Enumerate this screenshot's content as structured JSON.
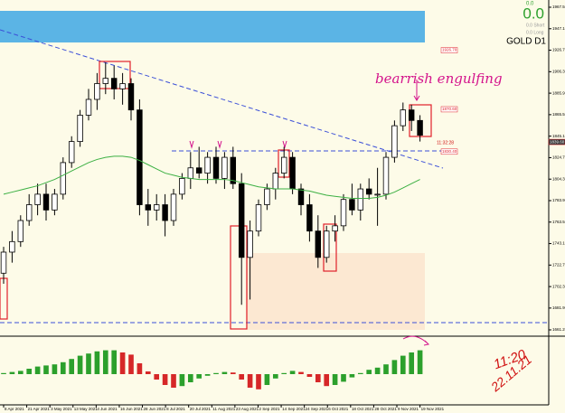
{
  "chart_data": {
    "type": "candlestick",
    "symbol": "GOLD D1",
    "info": {
      "spread": "0.0",
      "short": "0.0 Short",
      "long": "0.0 Long",
      "profit": "0.0"
    },
    "annotation": "bearrish engulfing",
    "note_time": "11:20",
    "note_date": "22.11.21",
    "timer": "11:32:28",
    "x_labels": [
      "8 Apr 2021",
      "21 Apr 2021",
      "3 May 2021",
      "13 May 2021",
      "4 Jun 2021",
      "16 Jun 2021",
      "28 Jun 2021",
      "8 Jul 2021",
      "20 Jul 2021",
      "11 Aug 2021",
      "23 Aug 2021",
      "2 Sep 2021",
      "14 Sep 2021",
      "24 Sep 2021",
      "6 Oct 2021",
      "18 Oct 2021",
      "28 Oct 2021",
      "9 Nov 2021",
      "19 Nov 2021"
    ],
    "ylim": [
      1661.2,
      1967.5
    ],
    "yticks": [
      {
        "value": 1967.5,
        "label": "1967.50"
      },
      {
        "value": 1947.1,
        "label": "1947.10"
      },
      {
        "value": 1926.7,
        "label": "1926.70"
      },
      {
        "value": 1906.3,
        "label": "1906.30"
      },
      {
        "value": 1885.9,
        "label": "1885.90"
      },
      {
        "value": 1865.5,
        "label": "1865.50"
      },
      {
        "value": 1845.1,
        "label": "1845.10"
      },
      {
        "value": 1824.7,
        "label": "1824.70"
      },
      {
        "value": 1804.3,
        "label": "1804.30"
      },
      {
        "value": 1783.9,
        "label": "1783.90"
      },
      {
        "value": 1763.5,
        "label": "1763.50"
      },
      {
        "value": 1743.1,
        "label": "1743.10"
      },
      {
        "value": 1722.7,
        "label": "1722.70"
      },
      {
        "value": 1702.3,
        "label": "1702.30"
      },
      {
        "value": 1681.9,
        "label": "1681.90"
      },
      {
        "value": 1661.2,
        "label": "1661.20"
      }
    ],
    "price_tags": [
      {
        "value": 1926.7,
        "label": "1926.70"
      },
      {
        "value": 1870.6,
        "label": "1870.60"
      },
      {
        "value": 1839.6,
        "label": "1839.60"
      },
      {
        "value": 1830.4,
        "label": "1830.40"
      }
    ],
    "up_color": "#000000",
    "down_color": "#000000",
    "ma_color": "#3cb043",
    "candles": [
      [
        1715,
        1740,
        1705,
        1735
      ],
      [
        1735,
        1755,
        1725,
        1745
      ],
      [
        1745,
        1770,
        1740,
        1765
      ],
      [
        1765,
        1790,
        1760,
        1780
      ],
      [
        1780,
        1800,
        1770,
        1790
      ],
      [
        1790,
        1800,
        1765,
        1775
      ],
      [
        1775,
        1795,
        1770,
        1790
      ],
      [
        1790,
        1825,
        1785,
        1820
      ],
      [
        1820,
        1845,
        1815,
        1840
      ],
      [
        1840,
        1870,
        1835,
        1865
      ],
      [
        1865,
        1890,
        1860,
        1880
      ],
      [
        1880,
        1905,
        1870,
        1895
      ],
      [
        1895,
        1915,
        1885,
        1900
      ],
      [
        1900,
        1912,
        1880,
        1890
      ],
      [
        1890,
        1905,
        1875,
        1895
      ],
      [
        1895,
        1900,
        1860,
        1870
      ],
      [
        1870,
        1880,
        1770,
        1780
      ],
      [
        1780,
        1795,
        1760,
        1775
      ],
      [
        1775,
        1790,
        1765,
        1780
      ],
      [
        1780,
        1790,
        1750,
        1765
      ],
      [
        1765,
        1795,
        1760,
        1790
      ],
      [
        1790,
        1810,
        1785,
        1805
      ],
      [
        1805,
        1830,
        1795,
        1815
      ],
      [
        1815,
        1835,
        1805,
        1810
      ],
      [
        1810,
        1830,
        1800,
        1825
      ],
      [
        1825,
        1835,
        1800,
        1805
      ],
      [
        1805,
        1830,
        1795,
        1825
      ],
      [
        1825,
        1835,
        1795,
        1800
      ],
      [
        1800,
        1810,
        1685,
        1730
      ],
      [
        1730,
        1765,
        1690,
        1755
      ],
      [
        1755,
        1785,
        1750,
        1780
      ],
      [
        1780,
        1800,
        1775,
        1795
      ],
      [
        1795,
        1815,
        1785,
        1810
      ],
      [
        1810,
        1835,
        1805,
        1825
      ],
      [
        1825,
        1830,
        1790,
        1795
      ],
      [
        1795,
        1800,
        1770,
        1780
      ],
      [
        1780,
        1790,
        1745,
        1755
      ],
      [
        1755,
        1770,
        1720,
        1730
      ],
      [
        1730,
        1760,
        1725,
        1755
      ],
      [
        1755,
        1770,
        1745,
        1760
      ],
      [
        1760,
        1790,
        1755,
        1785
      ],
      [
        1785,
        1800,
        1770,
        1775
      ],
      [
        1775,
        1800,
        1765,
        1795
      ],
      [
        1795,
        1805,
        1785,
        1790
      ],
      [
        1790,
        1815,
        1760,
        1790
      ],
      [
        1790,
        1830,
        1785,
        1825
      ],
      [
        1825,
        1860,
        1820,
        1855
      ],
      [
        1855,
        1877,
        1850,
        1870
      ],
      [
        1870,
        1875,
        1850,
        1860
      ],
      [
        1860,
        1865,
        1840,
        1846
      ]
    ],
    "ma": [
      1790,
      1792,
      1794,
      1796,
      1798,
      1801,
      1804,
      1808,
      1812,
      1816,
      1820,
      1823,
      1825,
      1826,
      1826,
      1825,
      1822,
      1818,
      1814,
      1810,
      1808,
      1806,
      1805,
      1804,
      1804,
      1804,
      1804,
      1803,
      1801,
      1799,
      1797,
      1796,
      1795,
      1795,
      1795,
      1794,
      1793,
      1791,
      1789,
      1788,
      1787,
      1786,
      1786,
      1786,
      1787,
      1789,
      1792,
      1796,
      1800,
      1804
    ],
    "ao_ylim": [
      -50,
      60
    ],
    "ao_up_color": "#2ca02c",
    "ao_down_color": "#d62728",
    "ao": [
      2,
      4,
      6,
      10,
      14,
      16,
      18,
      22,
      28,
      34,
      38,
      42,
      44,
      44,
      40,
      36,
      20,
      5,
      -10,
      -20,
      -25,
      -22,
      -15,
      -8,
      -3,
      2,
      4,
      3,
      -10,
      -25,
      -28,
      -20,
      -8,
      2,
      6,
      4,
      -5,
      -15,
      -22,
      -20,
      -14,
      -6,
      2,
      8,
      12,
      18,
      26,
      34,
      40,
      44
    ]
  }
}
